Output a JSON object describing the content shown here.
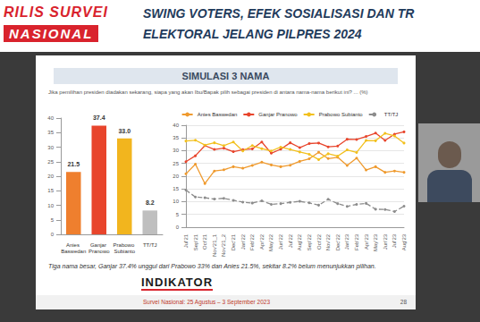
{
  "page": {
    "badge": [
      "RILIS SURVEI",
      "NASIONAL"
    ],
    "headline": [
      "SWING VOTERS, EFEK SOSIALISASI DAN TR",
      "ELEKTORAL JELANG PILPRES 2024"
    ],
    "slide_title": "SIMULASI 3 NAMA",
    "question": "Jika pemilihan presiden diadakan sekarang, siapa yang akan Ibu/Bapak pilih sebagai presiden di antara nama-nama berikut ini? ... (%)",
    "summary": "Tiga nama besar, Ganjar 37.4% unggul dari Prabowo 33% dan Anies 21.5%, sekitar 8.2% belum menunjukkan pilihan.",
    "logo": "INDIKATOR",
    "source": "Survei Nasional: 25 Agustus – 3 September 2023",
    "page_number": 28
  },
  "chart_data": [
    {
      "type": "bar",
      "categories": [
        "Anies Baswedan",
        "Ganjar Pranowo",
        "Prabowo Subianto",
        "TT/TJ"
      ],
      "values": [
        21.5,
        37.4,
        33.0,
        8.2
      ],
      "value_labels": [
        "21.5",
        "37.4",
        "33.0",
        "8.2"
      ],
      "colors": [
        "#ef7f2e",
        "#e8452c",
        "#f2b51e",
        "#bfbfbf"
      ],
      "ylim": [
        0,
        40
      ],
      "yticks": [
        0,
        5,
        10,
        15,
        20,
        25,
        30,
        35,
        40
      ],
      "grid": false,
      "data_labels": true
    },
    {
      "type": "line",
      "categories": [
        "Jul'21",
        "Sep'21",
        "Oct'21",
        "Nov'21_1",
        "Nov'21_2",
        "Dec'21",
        "Jan'22",
        "Feb'22",
        "Apr'22",
        "May'22",
        "Jun'22",
        "Jul'22",
        "Aug'22",
        "Sep'22",
        "Oct'22",
        "Nov'22",
        "Dec'22",
        "Jan'23",
        "Feb'23",
        "Apr'23",
        "May'23",
        "Jun'23",
        "Jul'23",
        "Aug'23"
      ],
      "series": [
        {
          "name": "Anies Baswedan",
          "color": "#ef9a2e",
          "line_style": "solid",
          "values": [
            20.9,
            24.7,
            17.1,
            22.0,
            22.5,
            23.7,
            23.1,
            24.2,
            25.5,
            24.4,
            23.7,
            24.3,
            25.8,
            26.8,
            29.4,
            26.9,
            27.4,
            24.2,
            27.1,
            22.4,
            23.7,
            21.5,
            22.0,
            21.5
          ]
        },
        {
          "name": "Ganjar Pranowo",
          "color": "#e8452c",
          "line_style": "solid",
          "values": [
            25.7,
            28.0,
            32.0,
            30.5,
            31.0,
            29.6,
            30.4,
            30.7,
            33.4,
            29.0,
            30.6,
            33.1,
            31.2,
            32.8,
            33.0,
            31.5,
            31.8,
            34.5,
            34.4,
            35.6,
            36.9,
            34.0,
            36.5,
            37.4
          ]
        },
        {
          "name": "Prabowo Subianto",
          "color": "#f2c01e",
          "line_style": "solid",
          "values": [
            33.8,
            34.1,
            32.2,
            33.1,
            32.0,
            33.4,
            29.9,
            32.0,
            30.8,
            29.9,
            31.4,
            30.5,
            29.5,
            28.6,
            26.5,
            28.8,
            27.9,
            30.3,
            29.3,
            34.0,
            33.9,
            36.8,
            35.8,
            33.0
          ]
        },
        {
          "name": "TT/TJ",
          "color": "#8c8c8c",
          "line_style": "dashed",
          "values": [
            14.5,
            11.8,
            11.5,
            11.0,
            11.3,
            10.5,
            9.8,
            9.4,
            10.3,
            8.9,
            9.2,
            9.7,
            10.1,
            9.5,
            8.6,
            10.9,
            9.2,
            8.1,
            8.9,
            9.3,
            7.0,
            6.9,
            6.1,
            8.2
          ]
        }
      ],
      "ylim": [
        0,
        40
      ],
      "yticks": [
        0,
        5,
        10,
        15,
        20,
        25,
        30,
        35,
        40
      ],
      "grid": true,
      "legend": "top",
      "marker": "circle"
    }
  ]
}
